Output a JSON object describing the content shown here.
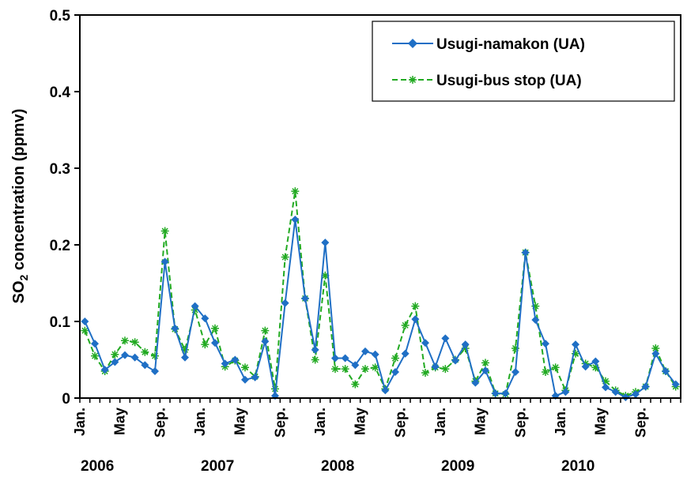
{
  "chart_data": {
    "type": "line",
    "ylabel_main": "SO",
    "ylabel_sub": "2",
    "ylabel_rest": " concentration (ppmv)",
    "ylim": [
      0,
      0.5
    ],
    "yticks": [
      "0",
      "0.1",
      "0.2",
      "0.3",
      "0.4",
      "0.5"
    ],
    "ytick_values": [
      0,
      0.1,
      0.2,
      0.3,
      0.4,
      0.5
    ],
    "x_month_labels": [
      {
        "index": 0,
        "label": "Jan."
      },
      {
        "index": 4,
        "label": "May"
      },
      {
        "index": 8,
        "label": "Sep."
      },
      {
        "index": 12,
        "label": "Jan."
      },
      {
        "index": 16,
        "label": "May"
      },
      {
        "index": 20,
        "label": "Sep."
      },
      {
        "index": 24,
        "label": "Jan."
      },
      {
        "index": 28,
        "label": "May"
      },
      {
        "index": 32,
        "label": "Sep."
      },
      {
        "index": 36,
        "label": "Jan."
      },
      {
        "index": 40,
        "label": "May"
      },
      {
        "index": 44,
        "label": "Sep."
      },
      {
        "index": 48,
        "label": "Jan."
      },
      {
        "index": 52,
        "label": "May"
      },
      {
        "index": 56,
        "label": "Sep."
      }
    ],
    "years": [
      {
        "index": 0,
        "label": "2006"
      },
      {
        "index": 12,
        "label": "2007"
      },
      {
        "index": 24,
        "label": "2008"
      },
      {
        "index": 36,
        "label": "2009"
      },
      {
        "index": 48,
        "label": "2010"
      }
    ],
    "n_months": 60,
    "grid": false,
    "legend_position": "top-right",
    "series": [
      {
        "name": "Usugi-namakon (UA)",
        "color": "#1f6fc5",
        "style": "solid-diamond",
        "values": [
          0.1,
          0.071,
          0.037,
          0.047,
          0.056,
          0.053,
          0.043,
          0.035,
          0.178,
          0.091,
          0.053,
          0.12,
          0.104,
          0.072,
          0.045,
          0.05,
          0.024,
          0.027,
          0.074,
          0.003,
          0.124,
          0.233,
          0.13,
          0.063,
          0.203,
          0.052,
          0.052,
          0.043,
          0.061,
          0.057,
          0.01,
          0.034,
          0.058,
          0.103,
          0.072,
          0.041,
          0.078,
          0.049,
          0.07,
          0.02,
          0.036,
          0.006,
          0.006,
          0.034,
          0.19,
          0.102,
          0.071,
          0.003,
          0.008,
          0.07,
          0.041,
          0.048,
          0.014,
          0.008,
          0.001,
          0.005,
          0.015,
          0.058,
          0.035,
          0.018
        ]
      },
      {
        "name": "Usugi-bus stop (UA)",
        "color": "#22aa22",
        "style": "dashed-star",
        "values": [
          0.088,
          0.055,
          0.035,
          0.057,
          0.075,
          0.073,
          0.06,
          0.055,
          0.218,
          0.09,
          0.063,
          0.115,
          0.07,
          0.091,
          0.041,
          0.049,
          0.04,
          0.028,
          0.088,
          0.012,
          0.184,
          0.27,
          0.13,
          0.05,
          0.16,
          0.038,
          0.038,
          0.018,
          0.038,
          0.04,
          0.012,
          0.052,
          0.095,
          0.12,
          0.033,
          0.04,
          0.038,
          0.05,
          0.065,
          0.022,
          0.046,
          0.006,
          0.005,
          0.065,
          0.19,
          0.12,
          0.034,
          0.04,
          0.01,
          0.058,
          0.045,
          0.04,
          0.022,
          0.01,
          0.003,
          0.008,
          0.015,
          0.065,
          0.035,
          0.015
        ]
      }
    ]
  }
}
